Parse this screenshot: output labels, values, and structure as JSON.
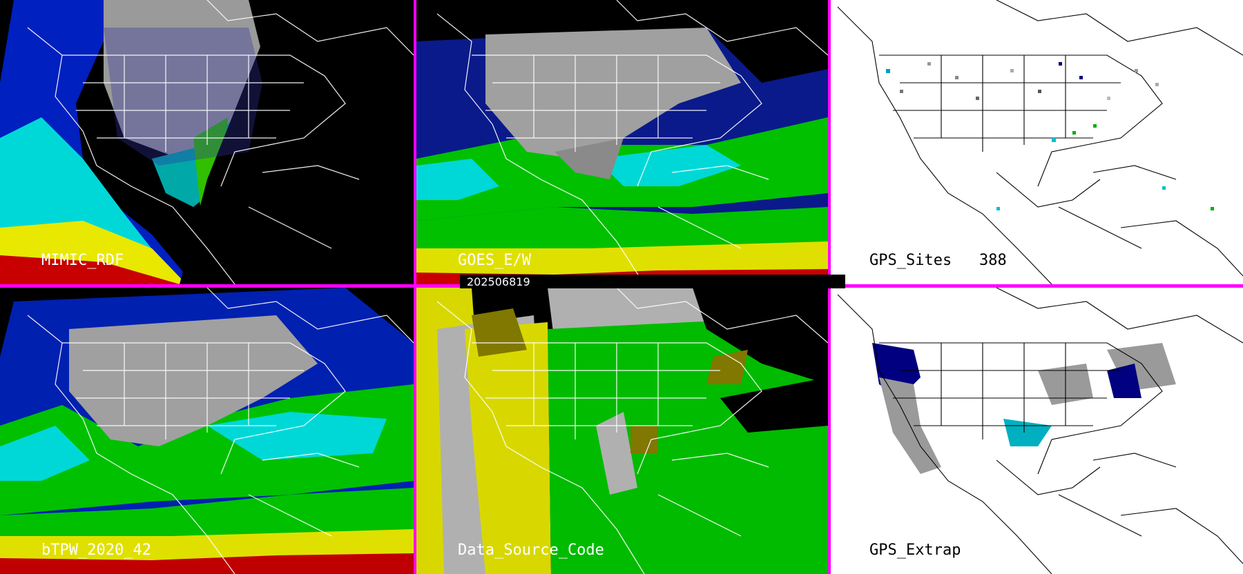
{
  "date_label": "202506819",
  "panels": [
    {
      "label": "MIMIC_RDF"
    },
    {
      "label": "GOES_E/W"
    },
    {
      "label": "GPS_Sites",
      "count": "388"
    },
    {
      "label": "bTPW_2020_42"
    },
    {
      "label": "Data_Source_Code"
    },
    {
      "label": "GPS_Extrap"
    }
  ],
  "colors": {
    "separator": "#ff00ff",
    "dry": "#000080",
    "moist": "#00e0e0",
    "mid": "#00c000",
    "wet": "#e0e000",
    "very_wet": "#c00000",
    "land": "#8a8a8a",
    "source_geo": "#d8d800",
    "source_leo": "#00bb00"
  }
}
